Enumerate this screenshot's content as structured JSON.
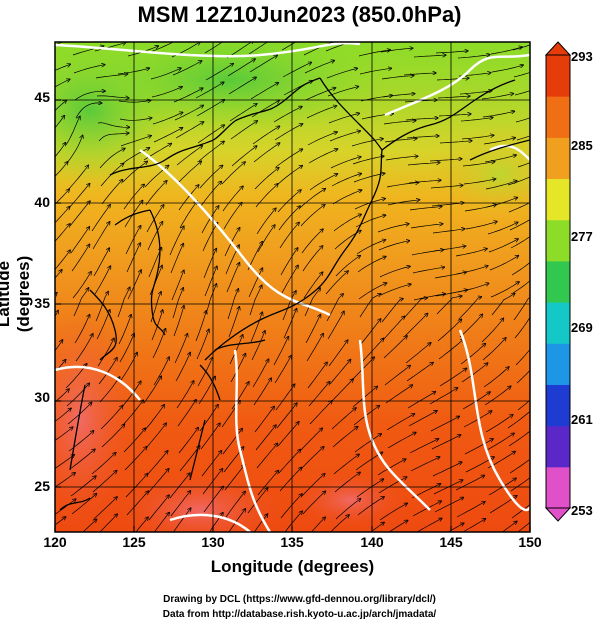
{
  "title": "MSM 12Z10Jun2023 (850.0hPa)",
  "xlabel": "Longitude (degrees)",
  "ylabel": "Latitude  (degrees)",
  "credits": [
    "Drawing by DCL (https://www.gfd-dennou.org/library/dcl/)",
    "Data from http://database.rish.kyoto-u.ac.jp/arch/jmadata/"
  ],
  "map": {
    "lon_range": [
      120,
      150
    ],
    "lat_range": [
      22.4,
      47.6
    ],
    "lon_ticks": [
      "120",
      "125",
      "130",
      "135",
      "140",
      "145",
      "150"
    ],
    "lat_ticks": [
      "25",
      "30",
      "35",
      "40",
      "45"
    ],
    "grid": true,
    "field": "temperature",
    "overlay": "streamlines"
  },
  "colorbar": {
    "min": 253,
    "max": 293,
    "ticks": [
      "293",
      "285",
      "277",
      "269",
      "261",
      "253"
    ],
    "colors": [
      "#e050c8",
      "#5a28c8",
      "#1e3cd2",
      "#1e96e6",
      "#14c8c8",
      "#32c850",
      "#8cdc28",
      "#e6e628",
      "#f0a01e",
      "#f06e14",
      "#e63c0a"
    ]
  }
}
